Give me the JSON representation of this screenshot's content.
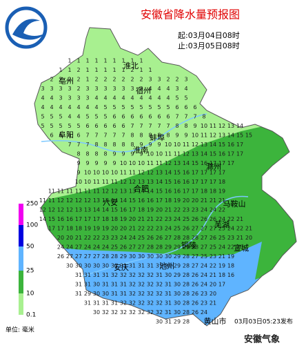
{
  "header": {
    "title": "安徽省降水量预报图",
    "start": "起:03月04日08时",
    "end": "止:03月05日08时"
  },
  "cities": [
    "淮北",
    "亳州",
    "宿州",
    "阜阳",
    "蚌埠",
    "淮南",
    "滁州",
    "合肥",
    "六安",
    "马鞍山",
    "芜湖",
    "铜陵",
    "宣城",
    "安庆",
    "池州",
    "黄山市"
  ],
  "grid": [
    [
      1,
      1,
      1,
      1,
      1,
      1,
      1,
      1,
      1
    ],
    [
      1,
      1,
      2,
      1,
      1,
      1,
      1,
      1,
      2,
      1,
      1
    ],
    [
      2,
      2,
      2,
      2,
      1,
      2,
      2,
      2,
      2,
      2,
      2,
      3,
      3,
      2,
      2,
      3
    ],
    [
      3,
      3,
      3,
      3,
      2,
      3,
      3,
      3,
      3,
      3,
      3,
      3,
      4,
      4,
      4,
      3,
      4
    ],
    [
      4,
      4,
      3,
      3,
      3,
      3,
      4,
      4,
      4,
      4,
      4,
      4,
      4,
      4,
      4,
      5,
      5
    ],
    [
      4,
      4,
      4,
      4,
      4,
      4,
      4,
      5,
      5,
      5,
      5,
      5,
      5,
      5,
      5,
      6,
      6,
      6
    ],
    [
      5,
      5,
      5,
      4,
      4,
      5,
      5,
      5,
      6,
      6,
      6,
      6,
      6,
      6,
      6,
      7,
      7,
      7,
      8
    ],
    [
      5,
      5,
      5,
      5,
      5,
      6,
      6,
      6,
      6,
      6,
      7,
      7,
      7,
      7,
      7,
      8,
      8,
      9,
      10,
      11,
      12,
      13,
      14
    ],
    [
      6,
      6,
      6,
      6,
      7,
      7,
      7,
      7,
      7,
      8,
      8,
      8,
      8,
      8,
      9,
      9,
      10,
      11,
      12,
      13,
      14,
      15,
      15
    ],
    [
      7,
      7,
      7,
      8,
      8,
      8,
      8,
      8,
      9,
      9,
      9,
      10,
      10,
      11,
      12,
      13,
      14,
      15,
      16,
      17
    ],
    [
      8,
      8,
      8,
      8,
      9,
      9,
      9,
      9,
      10,
      10,
      11,
      11,
      12,
      13,
      14,
      15,
      16,
      17,
      17
    ],
    [
      9,
      9,
      9,
      9,
      9,
      10,
      10,
      10,
      11,
      11,
      12,
      13,
      14,
      15,
      16,
      17,
      17,
      17
    ],
    [
      9,
      10,
      10,
      10,
      10,
      11,
      11,
      12,
      12,
      13,
      14,
      15,
      16,
      17,
      17,
      17,
      17
    ],
    [
      10,
      10,
      11,
      11,
      11,
      12,
      12,
      13,
      13,
      14,
      15,
      16,
      16,
      17,
      17,
      17,
      18
    ],
    [
      11,
      11,
      11,
      11,
      11,
      11,
      12,
      12,
      13,
      13,
      14,
      14,
      15,
      16,
      16,
      17,
      17,
      18,
      18,
      19
    ],
    [
      11,
      11,
      12,
      12,
      12,
      12,
      13,
      13,
      14,
      14,
      15,
      16,
      16,
      17,
      18,
      19,
      20,
      20,
      21,
      21,
      21
    ],
    [
      12,
      12,
      12,
      12,
      13,
      13,
      14,
      14,
      15,
      16,
      17,
      18,
      19,
      20,
      21,
      22,
      23,
      23,
      24,
      24,
      22
    ],
    [
      14,
      15,
      16,
      16,
      17,
      17,
      17,
      18,
      18,
      19,
      20,
      21,
      21,
      22,
      23,
      24,
      25,
      26,
      26,
      26,
      24,
      22,
      21
    ],
    [
      17,
      17,
      18,
      18,
      19,
      19,
      19,
      20,
      20,
      21,
      22,
      22,
      23,
      24,
      25,
      26,
      27,
      27,
      27,
      25,
      24,
      22,
      21
    ],
    [
      20,
      20,
      21,
      22,
      22,
      23,
      23,
      24,
      24,
      25,
      26,
      26,
      27,
      28,
      28,
      28,
      27,
      26,
      25,
      23,
      21,
      20
    ],
    [
      24,
      24,
      27,
      24,
      24,
      24,
      25,
      26,
      27,
      27,
      28,
      28,
      29,
      29,
      29,
      28,
      27,
      25,
      24,
      22,
      20
    ],
    [
      26,
      27,
      27,
      27,
      27,
      28,
      28,
      29,
      30,
      30,
      30,
      30,
      30,
      29,
      28,
      27,
      25,
      23,
      21,
      19
    ],
    [
      30,
      30,
      30,
      30,
      30,
      31,
      31,
      31,
      31,
      31,
      31,
      30,
      29,
      28,
      27,
      24,
      22,
      19,
      18
    ],
    [
      31,
      31,
      31,
      31,
      32,
      32,
      32,
      32,
      32,
      31,
      30,
      29,
      28,
      26,
      24,
      21,
      18,
      16
    ],
    [
      31,
      31,
      30,
      31,
      31,
      31,
      32,
      32,
      32,
      32,
      31,
      30,
      28,
      26,
      24,
      20,
      17
    ],
    [
      31,
      29,
      30,
      30,
      31,
      31,
      32,
      32,
      32,
      32,
      31,
      30,
      28,
      26,
      23,
      20
    ],
    [
      31,
      31,
      31,
      31,
      32,
      32,
      32,
      32,
      32,
      31,
      30,
      28,
      26,
      23,
      21
    ],
    [
      30,
      32,
      32,
      32,
      32,
      32,
      32,
      32,
      31,
      30,
      28,
      26,
      24
    ],
    [
      30,
      31,
      29,
      28
    ]
  ],
  "legend": {
    "ticks": [
      250,
      100,
      50,
      25,
      10,
      0.1
    ],
    "colors": [
      "#f000f0",
      "#0000e0",
      "#5fb4ff",
      "#3cb43c",
      "#a8f090"
    ],
    "unit": "单位: 毫米"
  },
  "footer": {
    "issued": "03月03日05:23发布",
    "watermark": "安徽气象"
  }
}
